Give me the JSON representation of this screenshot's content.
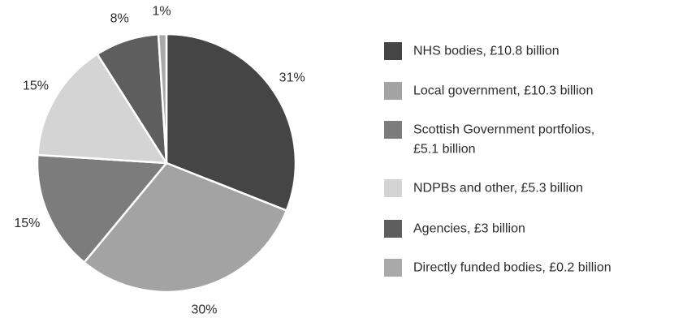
{
  "chart_data": {
    "type": "pie",
    "title": "",
    "legend_position": "right",
    "start_angle_deg": 0,
    "direction": "clockwise",
    "slices": [
      {
        "label": "NHS bodies, £10.8 billion",
        "value": 31,
        "display": "31%",
        "color": "#454545"
      },
      {
        "label": "Local government, £10.3 billion",
        "value": 30,
        "display": "30%",
        "color": "#a3a3a3"
      },
      {
        "label": "Scottish Government portfolios, £5.1 billion",
        "value": 15,
        "display": "15%",
        "color": "#7c7c7c"
      },
      {
        "label": "NDPBs and other, £5.3 billion",
        "value": 15,
        "display": "15%",
        "color": "#d4d4d4"
      },
      {
        "label": "Agencies, £3 billion",
        "value": 8,
        "display": "8%",
        "color": "#5e5e5e"
      },
      {
        "label": "Directly funded bodies, £0.2 billion",
        "value": 1,
        "display": "1%",
        "color": "#a9a9a9"
      }
    ],
    "legend": [
      {
        "lines": [
          "NHS bodies, £10.8 billion"
        ],
        "color": "#454545"
      },
      {
        "lines": [
          "Local government, £10.3 billion"
        ],
        "color": "#a3a3a3"
      },
      {
        "lines": [
          "Scottish Government portfolios,",
          "£5.1 billion"
        ],
        "color": "#7c7c7c"
      },
      {
        "lines": [
          "NDPBs and other, £5.3 billion"
        ],
        "color": "#d4d4d4"
      },
      {
        "lines": [
          "Agencies, £3 billion"
        ],
        "color": "#5e5e5e"
      },
      {
        "lines": [
          "Directly funded bodies, £0.2 billion"
        ],
        "color": "#a9a9a9"
      }
    ]
  }
}
